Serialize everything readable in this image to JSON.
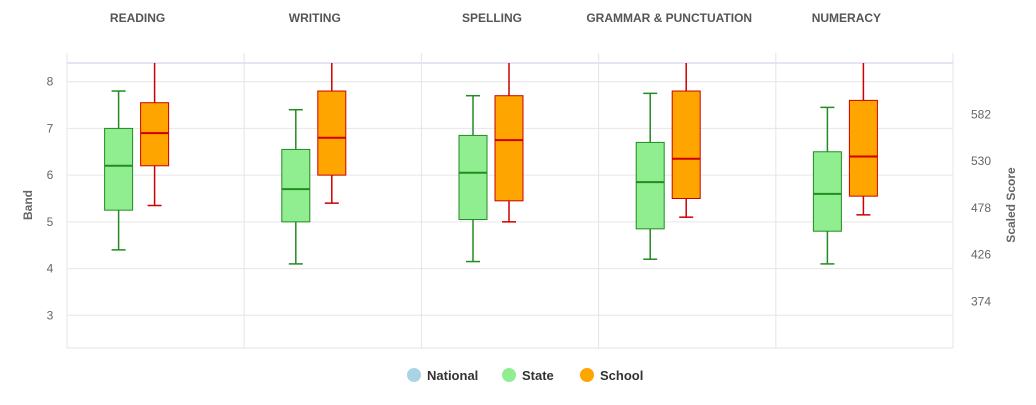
{
  "chart_data": {
    "type": "boxplot",
    "categories": [
      "READING",
      "WRITING",
      "SPELLING",
      "GRAMMAR & PUNCTUATION",
      "NUMERACY"
    ],
    "y_left": {
      "label": "Band",
      "range": [
        2.3,
        8.4
      ],
      "ticks": [
        "3",
        "4",
        "5",
        "6",
        "7",
        "8"
      ]
    },
    "y_right": {
      "label": "Scaled Score",
      "ticks": [
        "374",
        "426",
        "478",
        "530",
        "582"
      ]
    },
    "grid": true,
    "legend": {
      "position": "bottom-center",
      "items": [
        {
          "label": "National",
          "color": "#a8d4e6"
        },
        {
          "label": "State",
          "color": "#90ee90"
        },
        {
          "label": "School",
          "color": "#ffa500"
        }
      ]
    },
    "series": [
      {
        "name": "State",
        "fill": "#90ee90",
        "stroke": "#228b22",
        "median_color": "#228b22",
        "boxes": [
          {
            "min": 4.4,
            "q1": 5.25,
            "median": 6.2,
            "q3": 7.0,
            "max": 7.8
          },
          {
            "min": 4.1,
            "q1": 5.0,
            "median": 5.7,
            "q3": 6.55,
            "max": 7.4
          },
          {
            "min": 4.15,
            "q1": 5.05,
            "median": 6.05,
            "q3": 6.85,
            "max": 7.7
          },
          {
            "min": 4.2,
            "q1": 4.85,
            "median": 5.85,
            "q3": 6.7,
            "max": 7.75
          },
          {
            "min": 4.1,
            "q1": 4.8,
            "median": 5.6,
            "q3": 6.5,
            "max": 7.45
          }
        ]
      },
      {
        "name": "School",
        "fill": "#ffa500",
        "stroke": "#cc0000",
        "median_color": "#cc0000",
        "boxes": [
          {
            "min": 5.35,
            "q1": 6.2,
            "median": 6.9,
            "q3": 7.55,
            "max": 8.4
          },
          {
            "min": 5.4,
            "q1": 6.0,
            "median": 6.8,
            "q3": 7.8,
            "max": 8.4
          },
          {
            "min": 5.0,
            "q1": 5.45,
            "median": 6.75,
            "q3": 7.7,
            "max": 8.4
          },
          {
            "min": 5.1,
            "q1": 5.5,
            "median": 6.35,
            "q3": 7.8,
            "max": 8.4
          },
          {
            "min": 5.15,
            "q1": 5.55,
            "median": 6.4,
            "q3": 7.6,
            "max": 8.4
          }
        ]
      }
    ]
  }
}
